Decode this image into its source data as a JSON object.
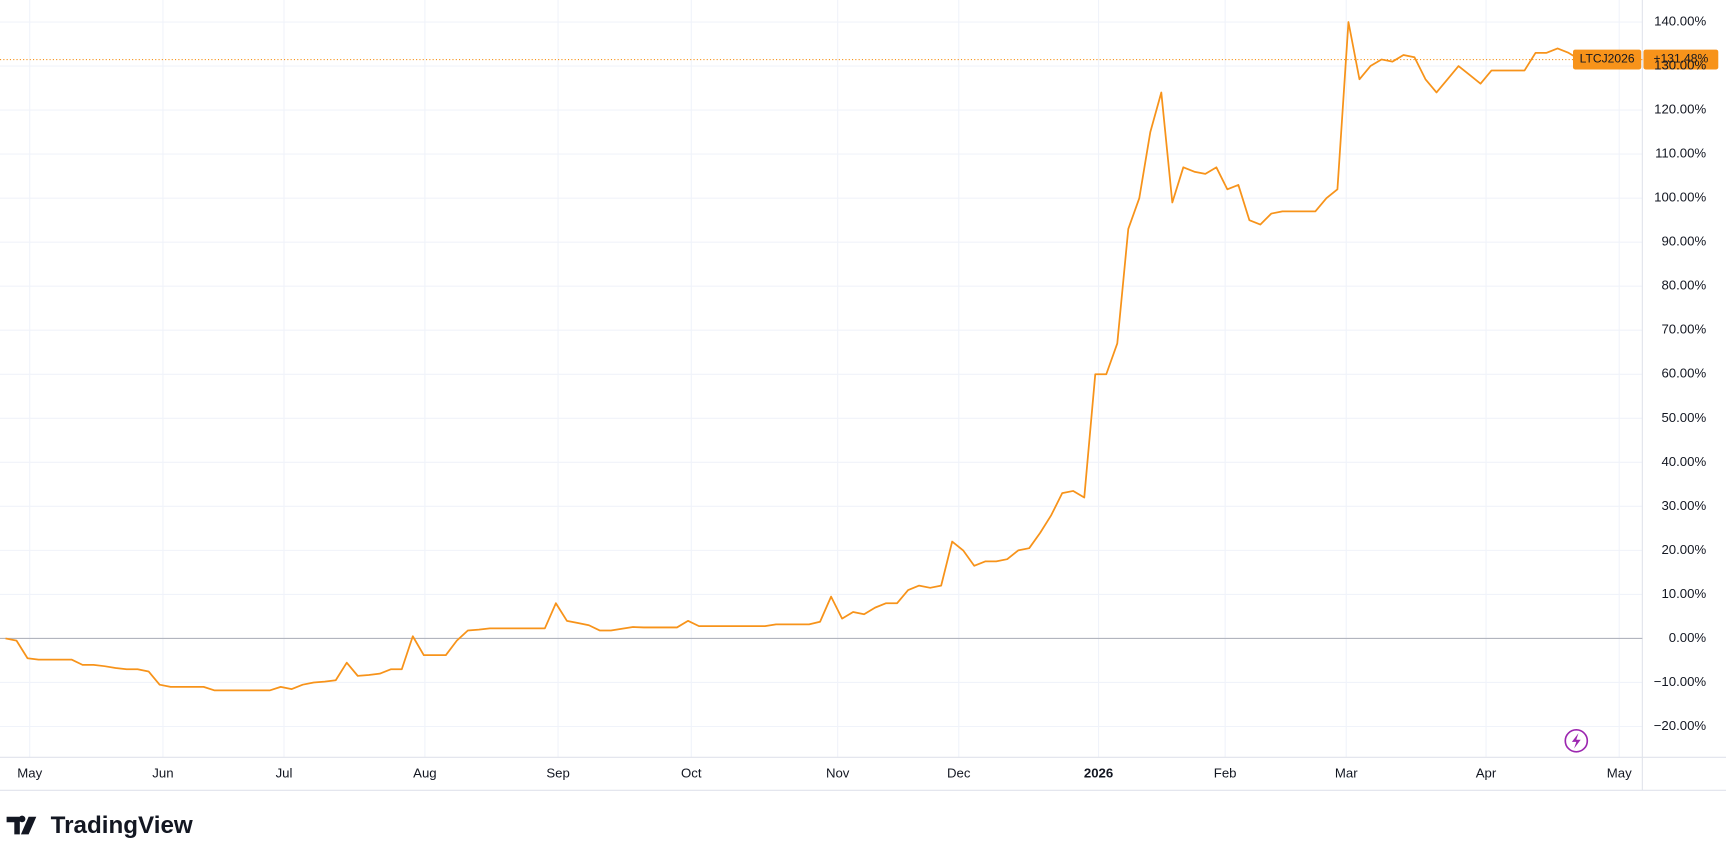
{
  "chart_data": {
    "type": "line",
    "series": [
      {
        "name": "LTCJ2026",
        "color": "#f7931a",
        "values": [
          0,
          -0.5,
          -4.5,
          -4.8,
          -4.8,
          -4.8,
          -4.8,
          -6,
          -6,
          -6.3,
          -6.7,
          -7,
          -7,
          -7.5,
          -10.5,
          -11,
          -11,
          -11,
          -11,
          -11.8,
          -11.8,
          -11.8,
          -11.8,
          -11.8,
          -11.8,
          -11,
          -11.5,
          -10.5,
          -10,
          -9.8,
          -9.5,
          -5.5,
          -8.5,
          -8.3,
          -8,
          -7,
          -7,
          0.5,
          -3.8,
          -3.8,
          -3.8,
          -0.5,
          1.8,
          2,
          2.3,
          2.3,
          2.3,
          2.3,
          2.3,
          2.3,
          8,
          4,
          3.5,
          3,
          1.8,
          1.8,
          2.2,
          2.6,
          2.5,
          2.5,
          2.5,
          2.5,
          4,
          2.8,
          2.8,
          2.8,
          2.8,
          2.8,
          2.8,
          2.8,
          3.2,
          3.2,
          3.2,
          3.2,
          3.8,
          9.5,
          4.5,
          6,
          5.5,
          7,
          8,
          8,
          11,
          12,
          11.5,
          12,
          22,
          20,
          16.5,
          17.5,
          17.5,
          18,
          20,
          20.5,
          24,
          28,
          33,
          33.5,
          32,
          60,
          60,
          67,
          93,
          100,
          115,
          124,
          99,
          107,
          106,
          105.5,
          107,
          102,
          103,
          95,
          94,
          96.5,
          97,
          97,
          97,
          97,
          100,
          102,
          140,
          127,
          130,
          131.5,
          131,
          132.5,
          132,
          127,
          124,
          127,
          130,
          128,
          126,
          129,
          129,
          129,
          129,
          133,
          133,
          134,
          133,
          131.5
        ]
      }
    ],
    "last_value": {
      "value": 131.48,
      "label": "+131.48%"
    },
    "xlim": [
      0,
      148.7
    ],
    "xticks": [
      {
        "value": 2.2,
        "label": "May"
      },
      {
        "value": 14.3,
        "label": "Jun"
      },
      {
        "value": 25.3,
        "label": "Jul"
      },
      {
        "value": 38.1,
        "label": "Aug"
      },
      {
        "value": 50.2,
        "label": "Sep"
      },
      {
        "value": 62.3,
        "label": "Oct"
      },
      {
        "value": 75.6,
        "label": "Nov"
      },
      {
        "value": 86.6,
        "label": "Dec"
      },
      {
        "value": 99.3,
        "label": "2026"
      },
      {
        "value": 110.8,
        "label": "Feb"
      },
      {
        "value": 121.8,
        "label": "Mar"
      },
      {
        "value": 134.5,
        "label": "Apr"
      },
      {
        "value": 146.6,
        "label": "May"
      }
    ],
    "ylim": [
      -27,
      145
    ],
    "yticks": [
      {
        "value": 140,
        "label": "140.00%"
      },
      {
        "value": 130,
        "label": "130.00%"
      },
      {
        "value": 120,
        "label": "120.00%"
      },
      {
        "value": 110,
        "label": "110.00%"
      },
      {
        "value": 100,
        "label": "100.00%"
      },
      {
        "value": 90,
        "label": "90.00%"
      },
      {
        "value": 80,
        "label": "80.00%"
      },
      {
        "value": 70,
        "label": "70.00%"
      },
      {
        "value": 60,
        "label": "60.00%"
      },
      {
        "value": 50,
        "label": "50.00%"
      },
      {
        "value": 40,
        "label": "40.00%"
      },
      {
        "value": 30,
        "label": "30.00%"
      },
      {
        "value": 20,
        "label": "20.00%"
      },
      {
        "value": 10,
        "label": "10.00%"
      },
      {
        "value": 0,
        "label": "0.00%"
      },
      {
        "value": -10,
        "label": "−10.00%"
      },
      {
        "value": -20,
        "label": "−20.00%"
      }
    ],
    "grid": true
  },
  "branding": "TradingView"
}
